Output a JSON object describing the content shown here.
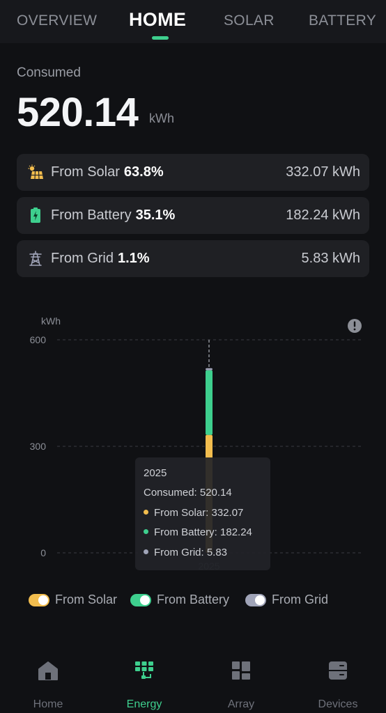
{
  "tabs": [
    {
      "label": "OVERVIEW",
      "active": false
    },
    {
      "label": "HOME",
      "active": true
    },
    {
      "label": "SOLAR",
      "active": false
    },
    {
      "label": "BATTERY",
      "active": false
    }
  ],
  "summary": {
    "label": "Consumed",
    "value": "520.14",
    "unit": "kWh"
  },
  "sources": [
    {
      "label": "From Solar",
      "percent": "63.8%",
      "value": "332.07 kWh",
      "icon": "solar-panel-icon",
      "color": "#f2bd4e"
    },
    {
      "label": "From Battery",
      "percent": "35.1%",
      "value": "182.24 kWh",
      "icon": "battery-icon",
      "color": "#3ecf8e"
    },
    {
      "label": "From Grid",
      "percent": "1.1%",
      "value": "5.83 kWh",
      "icon": "power-tower-icon",
      "color": "#a0a4b8"
    }
  ],
  "chart_data": {
    "type": "bar",
    "stacked": true,
    "ylabel": "kWh",
    "ylim": [
      0,
      600
    ],
    "yticks": [
      "0",
      "300",
      "600"
    ],
    "categories": [
      "2025"
    ],
    "series": [
      {
        "name": "From Solar",
        "values": [
          332.07
        ],
        "color": "#f2bd4e"
      },
      {
        "name": "From Battery",
        "values": [
          182.24
        ],
        "color": "#3ecf8e"
      },
      {
        "name": "From Grid",
        "values": [
          5.83
        ],
        "color": "#a0a4b8"
      }
    ],
    "grid": true,
    "legend": "bottom"
  },
  "tooltip": {
    "title": "2025",
    "consumed": "Consumed: 520.14",
    "solar": "From Solar: 332.07",
    "battery": "From Battery: 182.24",
    "grid": "From Grid: 5.83"
  },
  "legend": [
    {
      "label": "From Solar",
      "color": "#f2bd4e"
    },
    {
      "label": "From Battery",
      "color": "#3ecf8e"
    },
    {
      "label": "From Grid",
      "color": "#a0a4b8"
    }
  ],
  "nav": [
    {
      "label": "Home",
      "icon": "home-icon",
      "active": false
    },
    {
      "label": "Energy",
      "icon": "energy-icon",
      "active": true
    },
    {
      "label": "Array",
      "icon": "array-icon",
      "active": false
    },
    {
      "label": "Devices",
      "icon": "devices-icon",
      "active": false
    }
  ]
}
